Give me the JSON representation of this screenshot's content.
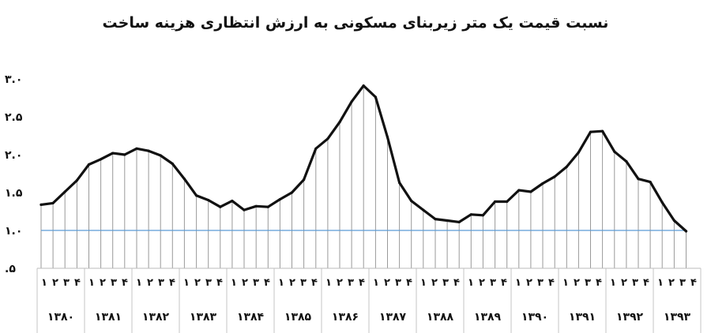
{
  "chart_data": {
    "type": "area",
    "title": "نسبت قیمت یک متر زیربنای مسکونی به ارزش انتظاری هزینه ساخت",
    "xlabel": "",
    "ylabel": "",
    "ylim": [
      0.5,
      3.0
    ],
    "yticks": [
      "۳.۰",
      "۲.۵",
      "۲.۰",
      "۱.۵",
      "۱.۰",
      ".۵"
    ],
    "ytick_values": [
      3.0,
      2.5,
      2.0,
      1.5,
      1.0,
      0.5
    ],
    "reference_line": {
      "value": 1.0,
      "color": "#5b9bd5"
    },
    "quarter_labels": [
      "۱",
      "۲",
      "۳",
      "۴"
    ],
    "years": [
      "۱۳۸۰",
      "۱۳۸۱",
      "۱۳۸۲",
      "۱۳۸۳",
      "۱۳۸۴",
      "۱۳۸۵",
      "۱۳۸۶",
      "۱۳۸۷",
      "۱۳۸۸",
      "۱۳۸۹",
      "۱۳۹۰",
      "۱۳۹۱",
      "۱۳۹۲",
      "۱۳۹۳"
    ],
    "series": [
      {
        "values": [
          1.34,
          1.36,
          1.51,
          1.66,
          1.87,
          1.94,
          2.02,
          2.0,
          2.08,
          2.05,
          1.99,
          1.88,
          1.68,
          1.46,
          1.4,
          1.31,
          1.39,
          1.27,
          1.32,
          1.31,
          1.41,
          1.5,
          1.67,
          2.08,
          2.21,
          2.43,
          2.7,
          2.91,
          2.76,
          2.23,
          1.63,
          1.39,
          1.27,
          1.15,
          1.13,
          1.11,
          1.21,
          1.2,
          1.38,
          1.38,
          1.53,
          1.51,
          1.62,
          1.71,
          1.84,
          2.03,
          2.3,
          2.31,
          2.04,
          1.91,
          1.68,
          1.64,
          1.37,
          1.13,
          0.99
        ]
      }
    ],
    "colors": {
      "line": "#111111",
      "fill": "#ffffff",
      "drop_lines": "#9a9a9a",
      "reference": "#5b9bd5"
    }
  }
}
